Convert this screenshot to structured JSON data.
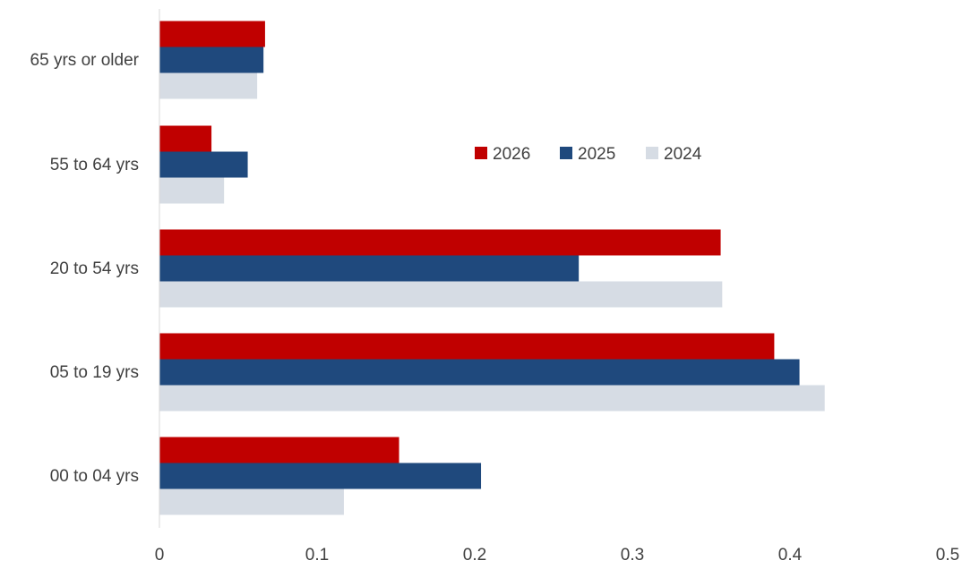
{
  "chart_data": {
    "type": "bar",
    "orientation": "horizontal",
    "title": "",
    "xlabel": "",
    "ylabel": "",
    "xlim": [
      0,
      0.5
    ],
    "x_ticks": [
      "0",
      "0.1",
      "0.2",
      "0.3",
      "0.4",
      "0.5"
    ],
    "categories": [
      "65 yrs or older",
      "55 to 64 yrs",
      "20 to 54 yrs",
      "05 to 19 yrs",
      "00 to 04 yrs"
    ],
    "series": [
      {
        "name": "2026",
        "color": "#c00000",
        "values": [
          0.067,
          0.033,
          0.356,
          0.39,
          0.152
        ]
      },
      {
        "name": "2025",
        "color": "#1f497d",
        "values": [
          0.066,
          0.056,
          0.266,
          0.406,
          0.204
        ]
      },
      {
        "name": "2024",
        "color": "#d6dce4",
        "values": [
          0.062,
          0.041,
          0.357,
          0.422,
          0.117
        ]
      }
    ],
    "grid": false,
    "legend_position": "upper-right, inside plot"
  }
}
